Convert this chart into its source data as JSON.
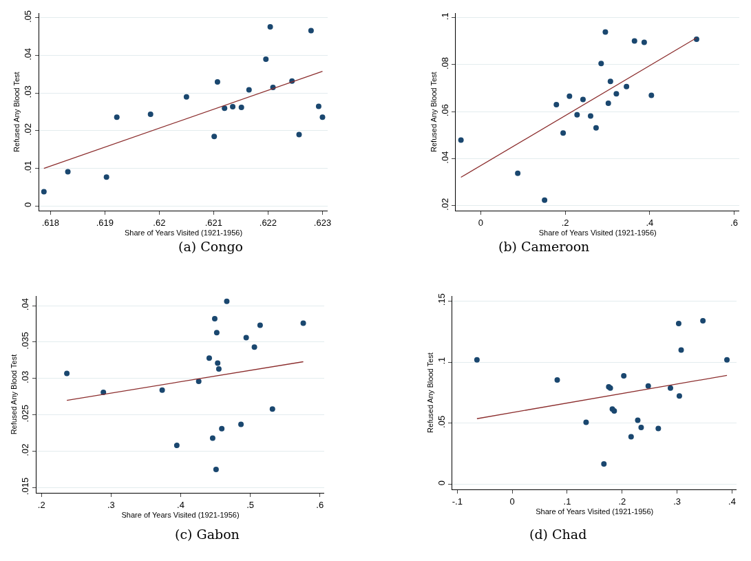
{
  "chart_data": [
    {
      "type": "scatter",
      "title": "(a) Congo",
      "xlabel": "Share of Years Visited (1921-1956)",
      "ylabel": "Refused Any Blood Test",
      "grid": "y",
      "xlim": [
        0.61779,
        0.6231
      ],
      "ylim": [
        -0.0013,
        0.0513
      ],
      "xticks": [
        {
          "value": 0.618,
          "label": ".618"
        },
        {
          "value": 0.619,
          "label": ".619"
        },
        {
          "value": 0.62,
          "label": ".62"
        },
        {
          "value": 0.621,
          "label": ".621"
        },
        {
          "value": 0.622,
          "label": ".622"
        },
        {
          "value": 0.623,
          "label": ".623"
        }
      ],
      "yticks": [
        0,
        {
          "value": 0.01,
          "label": ".01"
        },
        {
          "value": 0.02,
          "label": ".02"
        },
        {
          "value": 0.03,
          "label": ".03"
        },
        {
          "value": 0.04,
          "label": ".04"
        },
        {
          "value": 0.05,
          "label": ".05"
        }
      ],
      "series": [
        {
          "type": "scatter",
          "marker": "circle",
          "color": "#1a476f",
          "x": [
            0.61788,
            0.61832,
            0.61903,
            0.61922,
            0.61984,
            0.6205,
            0.62101,
            0.62107,
            0.6212,
            0.62135,
            0.62151,
            0.62165,
            0.62196,
            0.62204,
            0.62209,
            0.62244,
            0.62257,
            0.62279,
            0.62293,
            0.623
          ],
          "values": [
            0.0038,
            0.0091,
            0.0077,
            0.0236,
            0.0244,
            0.029,
            0.0185,
            0.033,
            0.026,
            0.0264,
            0.0262,
            0.0309,
            0.039,
            0.0476,
            0.0315,
            0.0332,
            0.019,
            0.0466,
            0.0265,
            0.0236
          ]
        },
        {
          "type": "line",
          "marker": "none",
          "line_style": "solid",
          "color": "#8b2c2c",
          "x": [
            0.61788,
            0.623
          ],
          "values": [
            0.01,
            0.0358
          ]
        }
      ]
    },
    {
      "type": "scatter",
      "title": "(b) Cameroon",
      "xlabel": "Share of Years Visited (1921-1956)",
      "ylabel": "Refused Any Blood Test",
      "grid": "y",
      "xlim": [
        -0.0589,
        0.6123
      ],
      "ylim": [
        0.0178,
        0.102
      ],
      "xticks": [
        0,
        {
          "value": 0.2,
          "label": ".2"
        },
        {
          "value": 0.4,
          "label": ".4"
        },
        {
          "value": 0.6,
          "label": ".6"
        }
      ],
      "yticks": [
        {
          "value": 0.02,
          "label": ".02"
        },
        {
          "value": 0.04,
          "label": ".04"
        },
        {
          "value": 0.06,
          "label": ".06"
        },
        {
          "value": 0.08,
          "label": ".08"
        },
        {
          "value": 0.1,
          "label": ".1"
        }
      ],
      "series": [
        {
          "type": "scatter",
          "marker": "circle",
          "color": "#1a476f",
          "x": [
            -0.047,
            0.0875,
            0.151,
            0.179,
            0.195,
            0.21,
            0.228,
            0.242,
            0.26,
            0.273,
            0.285,
            0.295,
            0.302,
            0.307,
            0.321,
            0.345,
            0.364,
            0.387,
            0.404,
            0.511
          ],
          "values": [
            0.0479,
            0.0338,
            0.0224,
            0.063,
            0.0509,
            0.0666,
            0.0587,
            0.0652,
            0.0582,
            0.0531,
            0.0805,
            0.0939,
            0.0636,
            0.0729,
            0.0676,
            0.0707,
            0.0901,
            0.0895,
            0.067,
            0.0908
          ]
        },
        {
          "type": "line",
          "marker": "none",
          "line_style": "solid",
          "color": "#8b2c2c",
          "x": [
            -0.047,
            0.511
          ],
          "values": [
            0.0321,
            0.0914
          ]
        }
      ]
    },
    {
      "type": "scatter",
      "title": "(c) Gabon",
      "xlabel": "Share of Years Visited (1921-1956)",
      "ylabel": "Refused Any Blood Test",
      "grid": "y",
      "xlim": [
        0.1925,
        0.6066
      ],
      "ylim": [
        0.0143,
        0.0413
      ],
      "xticks": [
        {
          "value": 0.2,
          "label": ".2"
        },
        {
          "value": 0.3,
          "label": ".3"
        },
        {
          "value": 0.4,
          "label": ".4"
        },
        {
          "value": 0.5,
          "label": ".5"
        },
        {
          "value": 0.6,
          "label": ".6"
        }
      ],
      "yticks": [
        {
          "value": 0.015,
          "label": ".015"
        },
        {
          "value": 0.02,
          "label": ".02"
        },
        {
          "value": 0.025,
          "label": ".025"
        },
        {
          "value": 0.03,
          "label": ".03"
        },
        {
          "value": 0.035,
          "label": ".035"
        },
        {
          "value": 0.04,
          "label": ".04"
        }
      ],
      "series": [
        {
          "type": "scatter",
          "marker": "circle",
          "color": "#1a476f",
          "x": [
            0.2364,
            0.2889,
            0.3734,
            0.3944,
            0.4259,
            0.441,
            0.4459,
            0.4489,
            0.4508,
            0.4518,
            0.4531,
            0.4548,
            0.459,
            0.4662,
            0.4866,
            0.4941,
            0.5059,
            0.5141,
            0.5318,
            0.5761
          ],
          "values": [
            0.0307,
            0.0281,
            0.0284,
            0.0208,
            0.0296,
            0.0328,
            0.0218,
            0.0382,
            0.0175,
            0.0363,
            0.0321,
            0.0313,
            0.0231,
            0.0406,
            0.0237,
            0.0356,
            0.0343,
            0.0373,
            0.0258,
            0.0376
          ]
        },
        {
          "type": "line",
          "marker": "none",
          "line_style": "solid",
          "color": "#8b2c2c",
          "x": [
            0.2364,
            0.5761
          ],
          "values": [
            0.027,
            0.0323
          ]
        }
      ]
    },
    {
      "type": "scatter",
      "title": "(d) Chad",
      "xlabel": "Share of Years Visited (1921-1956)",
      "ylabel": "Refused Any Blood Test",
      "grid": "y",
      "xlim": [
        -0.1087,
        0.4083
      ],
      "ylim": [
        -0.0041,
        0.1539
      ],
      "xticks": [
        {
          "value": -0.1,
          "label": "-.1"
        },
        0,
        {
          "value": 0.1,
          "label": ".1"
        },
        {
          "value": 0.2,
          "label": ".2"
        },
        {
          "value": 0.3,
          "label": ".3"
        },
        {
          "value": 0.4,
          "label": ".4"
        }
      ],
      "yticks": [
        0,
        {
          "value": 0.05,
          "label": ".05"
        },
        {
          "value": 0.1,
          "label": ".1"
        },
        {
          "value": 0.15,
          "label": ".15"
        }
      ],
      "series": [
        {
          "type": "scatter",
          "marker": "circle",
          "color": "#1a476f",
          "x": [
            -0.0642,
            0.0819,
            0.1344,
            0.1668,
            0.1756,
            0.1785,
            0.1822,
            0.1856,
            0.203,
            0.2163,
            0.2284,
            0.2346,
            0.2475,
            0.2658,
            0.2879,
            0.3029,
            0.3041,
            0.3074,
            0.347,
            0.3907
          ],
          "values": [
            0.1018,
            0.0854,
            0.0507,
            0.0166,
            0.0797,
            0.0788,
            0.0616,
            0.06,
            0.0887,
            0.0389,
            0.0524,
            0.0465,
            0.0804,
            0.0456,
            0.0788,
            0.1315,
            0.0723,
            0.1098,
            0.1338,
            0.1018
          ]
        },
        {
          "type": "line",
          "marker": "none",
          "line_style": "solid",
          "color": "#8b2c2c",
          "x": [
            -0.0642,
            0.3907
          ],
          "values": [
            0.0537,
            0.0891
          ]
        }
      ]
    }
  ]
}
